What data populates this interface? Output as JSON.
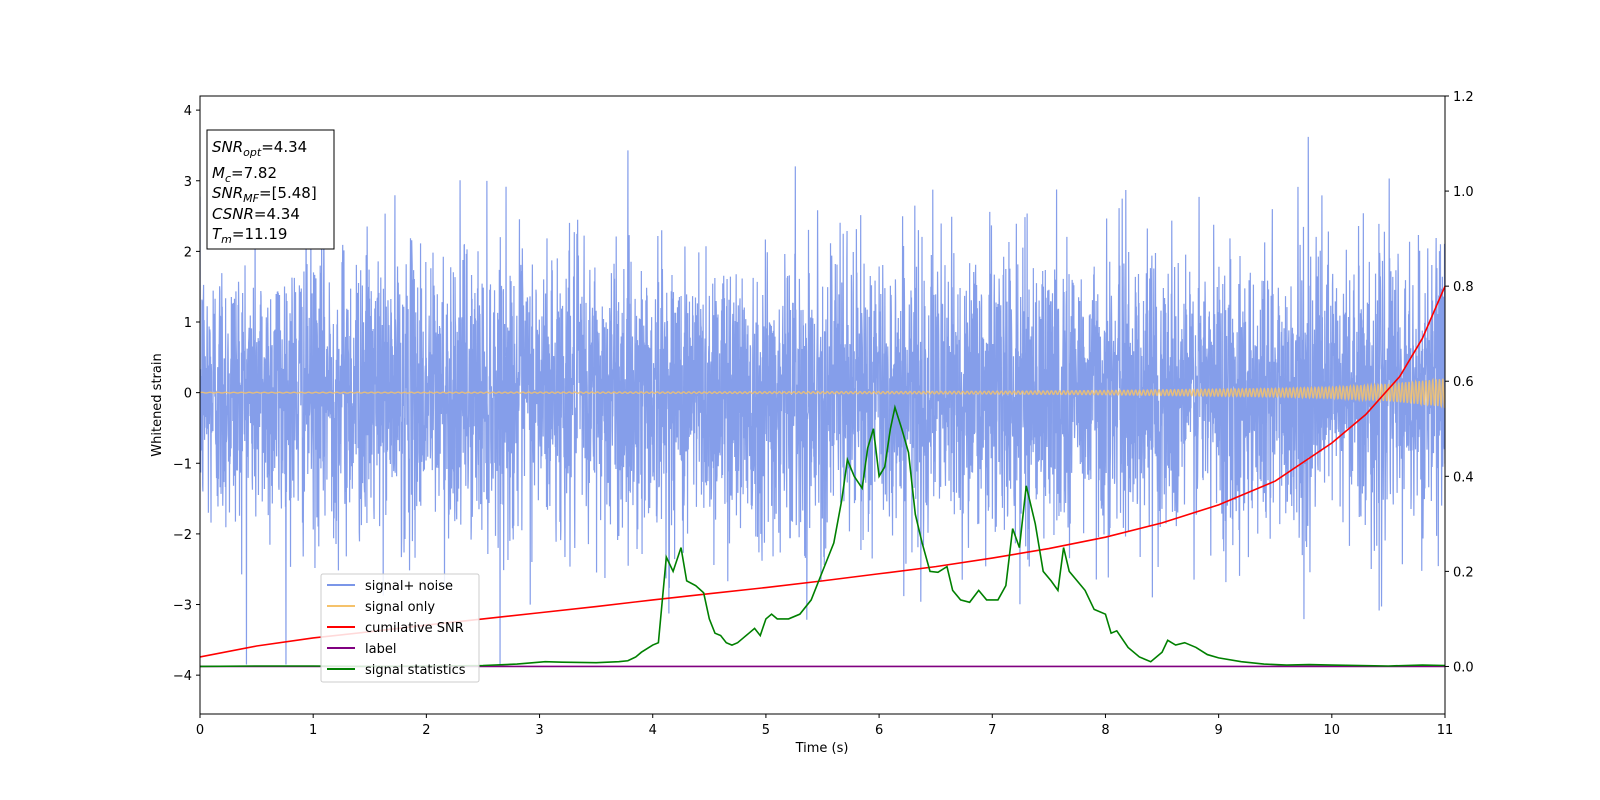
{
  "chart_data": {
    "type": "line",
    "xlabel": "Time (s)",
    "ylabel": "Whitened strain",
    "xlim": [
      0,
      11
    ],
    "ylim": [
      -4.55,
      4.2
    ],
    "y2lim": [
      -0.1,
      1.2
    ],
    "x_ticks": [
      "0",
      "1",
      "2",
      "3",
      "4",
      "5",
      "6",
      "7",
      "8",
      "9",
      "10",
      "11"
    ],
    "y_ticks": [
      "−4",
      "−3",
      "−2",
      "−1",
      "0",
      "1",
      "2",
      "3",
      "4"
    ],
    "y2_ticks": [
      "0.0",
      "0.2",
      "0.4",
      "0.6",
      "0.8",
      "1.0",
      "1.2"
    ],
    "legend_position": "lower-left",
    "annotations": [
      {
        "base": "SNR",
        "sub": "opt",
        "value": "=4.34"
      },
      {
        "base": "M",
        "sub": "c",
        "value": "=7.82"
      },
      {
        "base": "SNR",
        "sub": "MF",
        "value": "=[5.48]"
      },
      {
        "base": "CSNR",
        "sub": "",
        "value": "=4.34"
      },
      {
        "base": "T",
        "sub": "m",
        "value": "=11.19"
      }
    ],
    "series": [
      {
        "name": "signal+ noise",
        "color": "#7b96e8",
        "axis": "left",
        "noise_std": 1.0,
        "y_range": [
          -3.85,
          3.8
        ]
      },
      {
        "name": "signal only",
        "color": "#f5c26b",
        "axis": "left",
        "envelope": {
          "x": [
            0,
            2,
            4,
            6,
            7,
            8,
            9,
            9.5,
            10,
            10.5,
            11
          ],
          "amp": [
            0.005,
            0.007,
            0.01,
            0.015,
            0.02,
            0.03,
            0.05,
            0.06,
            0.08,
            0.12,
            0.2
          ]
        }
      },
      {
        "name": "cumilative SNR",
        "color": "#ff0000",
        "axis": "right",
        "x": [
          0,
          0.5,
          1,
          1.5,
          2,
          2.5,
          3,
          3.5,
          4,
          4.5,
          5,
          5.5,
          6,
          6.5,
          7,
          7.5,
          8,
          8.5,
          9,
          9.5,
          10,
          10.3,
          10.6,
          10.8,
          11
        ],
        "y": [
          0.02,
          0.043,
          0.06,
          0.073,
          0.087,
          0.1,
          0.113,
          0.126,
          0.14,
          0.153,
          0.166,
          0.18,
          0.195,
          0.21,
          0.228,
          0.248,
          0.272,
          0.302,
          0.34,
          0.39,
          0.47,
          0.53,
          0.61,
          0.69,
          0.8
        ]
      },
      {
        "name": "label",
        "color": "#800080",
        "axis": "right",
        "x": [
          0,
          11
        ],
        "y": [
          0,
          0
        ]
      },
      {
        "name": "signal statistics",
        "color": "#008000",
        "axis": "right",
        "x": [
          0,
          0.5,
          1,
          1.5,
          2,
          2.5,
          2.8,
          3.05,
          3.2,
          3.5,
          3.7,
          3.78,
          3.85,
          3.9,
          4.0,
          4.05,
          4.12,
          4.18,
          4.25,
          4.3,
          4.38,
          4.45,
          4.5,
          4.55,
          4.6,
          4.65,
          4.7,
          4.75,
          4.8,
          4.85,
          4.9,
          4.95,
          5.0,
          5.05,
          5.1,
          5.2,
          5.3,
          5.4,
          5.5,
          5.6,
          5.67,
          5.72,
          5.78,
          5.85,
          5.9,
          5.95,
          6.0,
          6.05,
          6.1,
          6.14,
          6.2,
          6.26,
          6.32,
          6.38,
          6.45,
          6.52,
          6.6,
          6.65,
          6.72,
          6.8,
          6.88,
          6.95,
          7.05,
          7.12,
          7.18,
          7.24,
          7.3,
          7.38,
          7.45,
          7.52,
          7.58,
          7.63,
          7.68,
          7.75,
          7.82,
          7.9,
          8.0,
          8.05,
          8.1,
          8.2,
          8.3,
          8.4,
          8.5,
          8.55,
          8.62,
          8.7,
          8.8,
          8.9,
          9.0,
          9.2,
          9.4,
          9.6,
          9.8,
          10.0,
          10.5,
          10.8,
          11.0
        ],
        "y": [
          0.0,
          0.001,
          0.001,
          0.0,
          0.001,
          0.002,
          0.005,
          0.01,
          0.009,
          0.008,
          0.01,
          0.012,
          0.02,
          0.03,
          0.045,
          0.05,
          0.23,
          0.2,
          0.25,
          0.18,
          0.17,
          0.155,
          0.1,
          0.07,
          0.065,
          0.05,
          0.045,
          0.05,
          0.06,
          0.07,
          0.08,
          0.065,
          0.1,
          0.11,
          0.1,
          0.1,
          0.11,
          0.14,
          0.2,
          0.26,
          0.35,
          0.435,
          0.4,
          0.375,
          0.46,
          0.5,
          0.4,
          0.42,
          0.5,
          0.545,
          0.5,
          0.45,
          0.32,
          0.26,
          0.2,
          0.198,
          0.21,
          0.16,
          0.14,
          0.135,
          0.16,
          0.14,
          0.14,
          0.17,
          0.29,
          0.25,
          0.38,
          0.3,
          0.2,
          0.18,
          0.16,
          0.25,
          0.2,
          0.18,
          0.16,
          0.12,
          0.11,
          0.07,
          0.075,
          0.04,
          0.02,
          0.01,
          0.03,
          0.055,
          0.045,
          0.05,
          0.04,
          0.025,
          0.018,
          0.01,
          0.005,
          0.003,
          0.004,
          0.003,
          0.001,
          0.003,
          0.002
        ]
      }
    ]
  }
}
